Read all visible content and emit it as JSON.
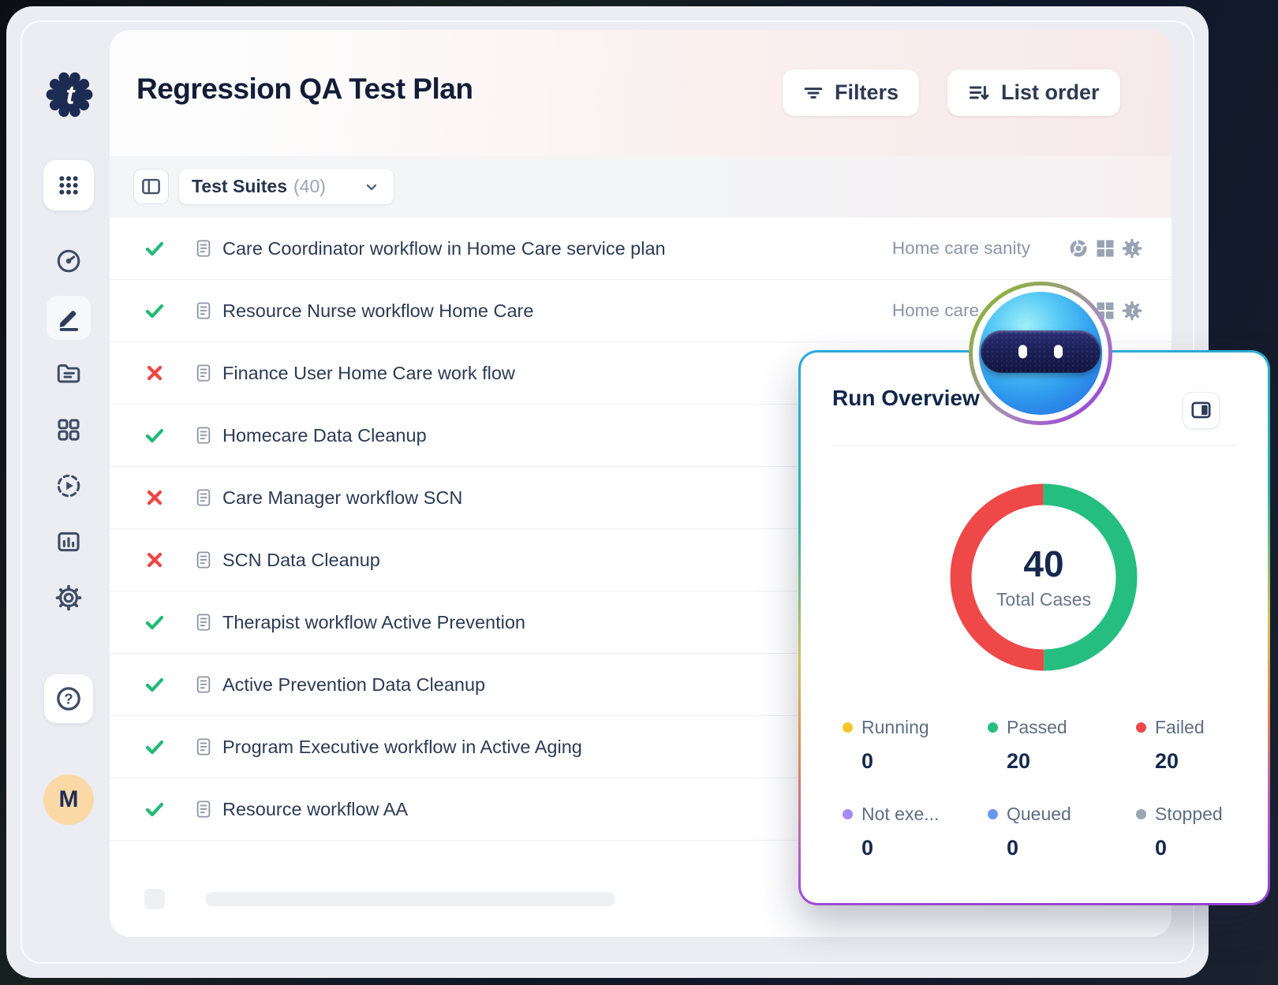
{
  "brand": {
    "logo_icon": "gear-logo",
    "logo_letter": "t"
  },
  "header": {
    "title": "Regression QA Test Plan",
    "filters_button": "Filters",
    "list_order_button": "List order"
  },
  "toolbar": {
    "suites_label": "Test Suites",
    "suites_count": "(40)"
  },
  "sidebar": {
    "items": [
      {
        "icon": "apps-grid-icon"
      },
      {
        "icon": "dashboard-gauge-icon"
      },
      {
        "icon": "edit-pencil-icon",
        "active": true
      },
      {
        "icon": "folder-icon"
      },
      {
        "icon": "elements-grid-icon"
      },
      {
        "icon": "run-play-icon"
      },
      {
        "icon": "reports-chart-icon"
      },
      {
        "icon": "settings-gear-icon"
      }
    ],
    "help_glyph": "?",
    "avatar_initial": "M"
  },
  "rows": [
    {
      "status": "passed",
      "title": "Care Coordinator workflow in Home Care service plan",
      "suite": "Home care sanity",
      "env_icons": [
        "chrome-icon",
        "windows-icon",
        "agent-gear-icon"
      ]
    },
    {
      "status": "passed",
      "title": "Resource Nurse workflow Home Care",
      "suite": "Home care sanity",
      "env_icons": [
        "chrome-icon",
        "windows-icon",
        "agent-gear-icon"
      ]
    },
    {
      "status": "failed",
      "title": "Finance User Home Care work flow"
    },
    {
      "status": "passed",
      "title": "Homecare Data Cleanup"
    },
    {
      "status": "failed",
      "title": "Care Manager workflow SCN"
    },
    {
      "status": "failed",
      "title": "SCN Data Cleanup"
    },
    {
      "status": "passed",
      "title": "Therapist workflow Active Prevention"
    },
    {
      "status": "passed",
      "title": "Active Prevention Data Cleanup"
    },
    {
      "status": "passed",
      "title": "Program Executive workflow in Active Aging"
    },
    {
      "status": "passed",
      "title": "Resource workflow AA"
    }
  ],
  "run_overview": {
    "title": "Run Overview",
    "collapse_icon": "panel-right-icon",
    "chart_data": {
      "type": "pie",
      "title": "Run Overview",
      "center_value": "40",
      "center_label": "Total Cases",
      "donut_start": "top",
      "direction": "clockwise",
      "legend_position": "bottom",
      "segments": [
        {
          "name": "Passed",
          "value": 20,
          "color": "#25BE80"
        },
        {
          "name": "Failed",
          "value": 20,
          "color": "#EE4848"
        }
      ],
      "legend": [
        {
          "label": "Running",
          "value": "0",
          "color": "#F6C52B"
        },
        {
          "label": "Passed",
          "value": "20",
          "color": "#25BE80"
        },
        {
          "label": "Failed",
          "value": "20",
          "color": "#EE4848"
        },
        {
          "label": "Not exe...",
          "value": "0",
          "color": "#A78BFA"
        },
        {
          "label": "Queued",
          "value": "0",
          "color": "#6B97F0"
        },
        {
          "label": "Stopped",
          "value": "0",
          "color": "#9AA4B2"
        }
      ]
    }
  },
  "bot": {
    "icon": "assistant-bot-avatar"
  },
  "colors": {
    "passed_green": "#21BA74",
    "failed_red": "#EE4545",
    "navy_text": "#16223C",
    "muted_text": "#8B95A7",
    "panel_border_top": "#2BA7E1",
    "panel_border_bottom": "#8E3FD0",
    "avatar_bg": "#FBD9A7"
  }
}
